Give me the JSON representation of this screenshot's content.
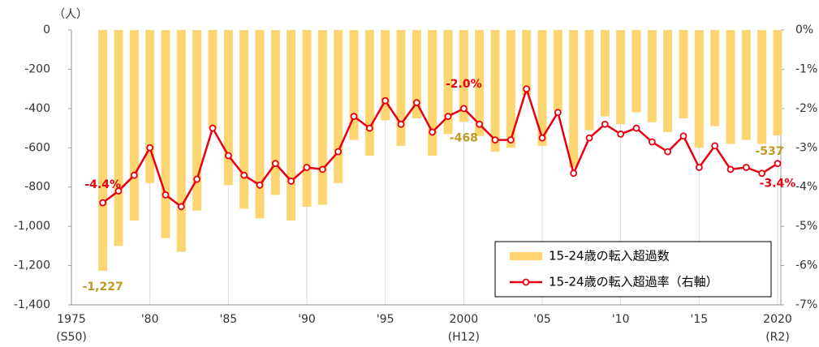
{
  "chart_data": {
    "type": "bar_line",
    "y_unit_label": "（人）",
    "x": [
      1977,
      1978,
      1979,
      1980,
      1981,
      1982,
      1983,
      1984,
      1985,
      1986,
      1987,
      1988,
      1989,
      1990,
      1991,
      1992,
      1993,
      1994,
      1995,
      1996,
      1997,
      1998,
      1999,
      2000,
      2001,
      2002,
      2003,
      2004,
      2005,
      2006,
      2007,
      2008,
      2009,
      2010,
      2011,
      2012,
      2013,
      2014,
      2015,
      2016,
      2017,
      2018,
      2019,
      2020
    ],
    "series": [
      {
        "name": "15-24歳の転入超過数",
        "type": "bar",
        "color": "#fdd571",
        "label_color": "#c09a20",
        "values": [
          -1227,
          -1100,
          -970,
          -780,
          -1060,
          -1130,
          -920,
          -500,
          -790,
          -910,
          -960,
          -840,
          -970,
          -900,
          -890,
          -780,
          -560,
          -640,
          -460,
          -590,
          -450,
          -640,
          -530,
          -468,
          -540,
          -620,
          -600,
          -330,
          -590,
          -410,
          -700,
          -510,
          -440,
          -480,
          -420,
          -470,
          -520,
          -450,
          -600,
          -490,
          -580,
          -560,
          -580,
          -537
        ],
        "value_labels": [
          "-1,227",
          null,
          null,
          null,
          null,
          null,
          null,
          null,
          null,
          null,
          null,
          null,
          null,
          null,
          null,
          null,
          null,
          null,
          null,
          null,
          null,
          null,
          null,
          "-468",
          null,
          null,
          null,
          null,
          null,
          null,
          null,
          null,
          null,
          null,
          null,
          null,
          null,
          null,
          null,
          null,
          null,
          null,
          null,
          "-537"
        ]
      },
      {
        "name": "15-24歳の転入超過率（右軸）",
        "type": "line",
        "axis": "y2",
        "color": "#e60012",
        "label_color": "#e60012",
        "values": [
          -4.4,
          -4.1,
          -3.7,
          -3.0,
          -4.2,
          -4.5,
          -3.8,
          -2.5,
          -3.2,
          -3.7,
          -3.95,
          -3.4,
          -3.85,
          -3.5,
          -3.55,
          -3.1,
          -2.2,
          -2.5,
          -1.8,
          -2.4,
          -1.85,
          -2.6,
          -2.2,
          -2.0,
          -2.4,
          -2.8,
          -2.8,
          -1.5,
          -2.75,
          -2.1,
          -3.65,
          -2.75,
          -2.4,
          -2.65,
          -2.5,
          -2.85,
          -3.1,
          -2.7,
          -3.5,
          -2.95,
          -3.55,
          -3.5,
          -3.65,
          -3.4
        ],
        "value_labels": [
          "-4.4%",
          null,
          null,
          null,
          null,
          null,
          null,
          null,
          null,
          null,
          null,
          null,
          null,
          null,
          null,
          null,
          null,
          null,
          null,
          null,
          null,
          null,
          null,
          "-2.0%",
          null,
          null,
          null,
          null,
          null,
          null,
          null,
          null,
          null,
          null,
          null,
          null,
          null,
          null,
          null,
          null,
          null,
          null,
          null,
          "-3.4%"
        ]
      }
    ],
    "xlim": [
      1975,
      2020
    ],
    "xticks": [
      1975,
      {
        "value": 1980,
        "label": "'80"
      },
      {
        "value": 1985,
        "label": "'85"
      },
      {
        "value": 1990,
        "label": "'90"
      },
      {
        "value": 1995,
        "label": "'95"
      },
      2000,
      {
        "value": 2005,
        "label": "'05"
      },
      {
        "value": 2010,
        "label": "'10"
      },
      {
        "value": 2015,
        "label": "'15"
      },
      2020
    ],
    "xtick_sublabels": [
      {
        "value": 1975,
        "label": "(S50)"
      },
      {
        "value": 2000,
        "label": "(H12)"
      },
      {
        "value": 2020,
        "label": "(R2)"
      }
    ],
    "ylim": [
      -1400,
      0
    ],
    "yticks": [
      0,
      -200,
      -400,
      -600,
      -800,
      {
        "value": -1000,
        "label": "-1,000"
      },
      {
        "value": -1200,
        "label": "-1,200"
      },
      {
        "value": -1400,
        "label": "-1,400"
      }
    ],
    "y2lim": [
      -7,
      0
    ],
    "y2ticks": [
      {
        "value": 0,
        "label": "0%"
      },
      {
        "value": -1,
        "label": "-1%"
      },
      {
        "value": -2,
        "label": "-2%"
      },
      {
        "value": -3,
        "label": "-3%"
      },
      {
        "value": -4,
        "label": "-4%"
      },
      {
        "value": -5,
        "label": "-5%"
      },
      {
        "value": -6,
        "label": "-6%"
      },
      {
        "value": -7,
        "label": "-7%"
      }
    ],
    "grid_x": true,
    "legend": "lower right"
  }
}
